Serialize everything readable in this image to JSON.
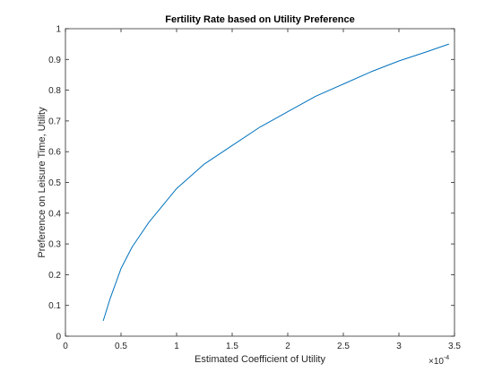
{
  "chart_data": {
    "type": "line",
    "title": "Fertility Rate based on Utility Preference",
    "xlabel": "Estimated Coefficient of Utility",
    "ylabel": "Preference on Leisure Time, Utility",
    "x_multiplier": {
      "base": "×10",
      "exponent": "-4"
    },
    "xlim": [
      0,
      3.5
    ],
    "ylim": [
      0,
      1
    ],
    "xticks": [
      0,
      0.5,
      1,
      1.5,
      2,
      2.5,
      3,
      3.5
    ],
    "xtick_labels": [
      "0",
      "0.5",
      "1",
      "1.5",
      "2",
      "2.5",
      "3",
      "3.5"
    ],
    "yticks": [
      0,
      0.1,
      0.2,
      0.3,
      0.4,
      0.5,
      0.6,
      0.7,
      0.8,
      0.9,
      1
    ],
    "ytick_labels": [
      "0",
      "0.1",
      "0.2",
      "0.3",
      "0.4",
      "0.5",
      "0.6",
      "0.7",
      "0.8",
      "0.9",
      "1"
    ],
    "grid": false,
    "series": [
      {
        "color": "#0072bd",
        "x": [
          0.34,
          0.4,
          0.5,
          0.6,
          0.75,
          1.0,
          1.25,
          1.5,
          1.75,
          2.0,
          2.25,
          2.5,
          2.75,
          3.0,
          3.25,
          3.45
        ],
        "y": [
          0.05,
          0.12,
          0.22,
          0.29,
          0.37,
          0.48,
          0.56,
          0.62,
          0.68,
          0.73,
          0.78,
          0.82,
          0.86,
          0.895,
          0.925,
          0.95
        ]
      }
    ]
  }
}
